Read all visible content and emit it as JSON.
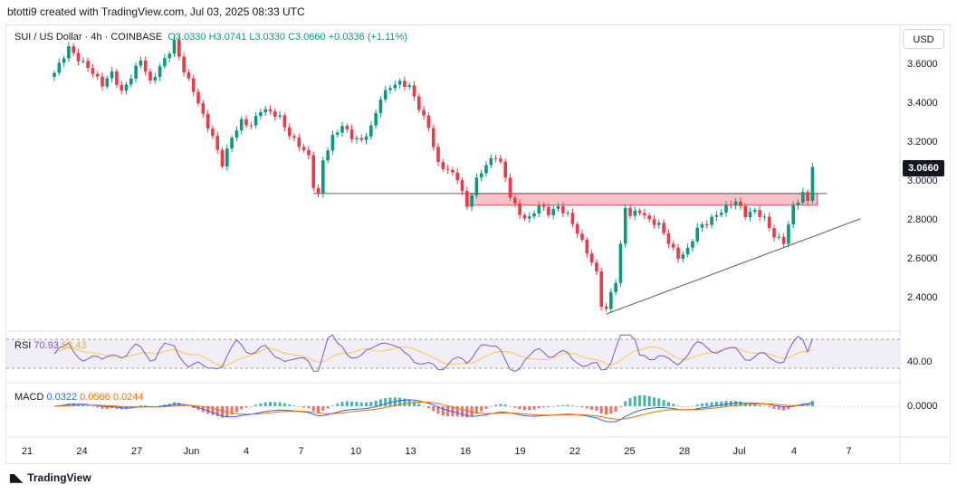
{
  "header": {
    "attribution": "btotti9 created with TradingView.com, Jul 03, 2025 08:33 UTC"
  },
  "symbol": {
    "name": "SUI / US Dollar · 4h · COINBASE",
    "ohlc": "O3.0330  H3.0741  L3.0330  C3.0660  +0.0336 (+1.11%)"
  },
  "currency_button": "USD",
  "last_price": "3.0660",
  "rsi": {
    "label": "RSI",
    "value_rsi": "70.93",
    "value_ma": "53.43",
    "level_label": "40.00"
  },
  "macd": {
    "label": "MACD",
    "value_macd": "0.0322",
    "value_signal": "0.0566",
    "value_hist": "0.0244",
    "zero_label": "0.0000"
  },
  "footer": {
    "brand": "TradingView"
  },
  "colors": {
    "up": "#089981",
    "down": "#f23645",
    "rsi": "#7e57c2",
    "rsi_ma": "#f7c948",
    "macd": "#2962ff",
    "signal": "#ff6d00",
    "resistance_zone": "#f8bbc2"
  },
  "chart_data": {
    "type": "candlestick",
    "title": "SUI / US Dollar · 4h · COINBASE",
    "ylabel": "USD",
    "ylim": [
      2.25,
      3.72
    ],
    "yticks": [
      "3.6000",
      "3.4000",
      "3.2000",
      "3.0000",
      "2.8000",
      "2.6000",
      "2.4000"
    ],
    "xticks": [
      "21",
      "24",
      "27",
      "Jun",
      "4",
      "7",
      "10",
      "13",
      "16",
      "19",
      "22",
      "25",
      "28",
      "Jul",
      "4",
      "7"
    ],
    "close_path": [
      [
        0,
        3.55
      ],
      [
        3,
        3.68
      ],
      [
        5,
        3.62
      ],
      [
        7,
        3.58
      ],
      [
        10,
        3.49
      ],
      [
        12,
        3.55
      ],
      [
        14,
        3.45
      ],
      [
        16,
        3.53
      ],
      [
        18,
        3.62
      ],
      [
        20,
        3.5
      ],
      [
        22,
        3.58
      ],
      [
        24,
        3.66
      ],
      [
        25,
        3.71
      ],
      [
        27,
        3.56
      ],
      [
        29,
        3.46
      ],
      [
        31,
        3.33
      ],
      [
        33,
        3.22
      ],
      [
        35,
        3.08
      ],
      [
        37,
        3.22
      ],
      [
        39,
        3.3
      ],
      [
        41,
        3.28
      ],
      [
        43,
        3.36
      ],
      [
        45,
        3.35
      ],
      [
        47,
        3.32
      ],
      [
        49,
        3.23
      ],
      [
        51,
        3.18
      ],
      [
        53,
        3.12
      ],
      [
        54,
        2.97
      ],
      [
        55,
        2.92
      ],
      [
        56,
        3.1
      ],
      [
        58,
        3.22
      ],
      [
        60,
        3.28
      ],
      [
        62,
        3.22
      ],
      [
        64,
        3.2
      ],
      [
        66,
        3.27
      ],
      [
        68,
        3.42
      ],
      [
        70,
        3.48
      ],
      [
        72,
        3.5
      ],
      [
        74,
        3.48
      ],
      [
        76,
        3.37
      ],
      [
        78,
        3.27
      ],
      [
        80,
        3.08
      ],
      [
        82,
        3.05
      ],
      [
        84,
        3.01
      ],
      [
        86,
        2.86
      ],
      [
        88,
        3.0
      ],
      [
        90,
        3.08
      ],
      [
        92,
        3.12
      ],
      [
        93,
        3.09
      ],
      [
        95,
        2.92
      ],
      [
        97,
        2.82
      ],
      [
        99,
        2.8
      ],
      [
        101,
        2.87
      ],
      [
        103,
        2.83
      ],
      [
        105,
        2.86
      ],
      [
        107,
        2.82
      ],
      [
        109,
        2.73
      ],
      [
        111,
        2.63
      ],
      [
        113,
        2.52
      ],
      [
        114,
        2.36
      ],
      [
        115,
        2.33
      ],
      [
        116,
        2.42
      ],
      [
        117,
        2.48
      ],
      [
        118,
        2.66
      ],
      [
        119,
        2.86
      ],
      [
        120,
        2.82
      ],
      [
        122,
        2.84
      ],
      [
        124,
        2.79
      ],
      [
        126,
        2.77
      ],
      [
        128,
        2.68
      ],
      [
        130,
        2.6
      ],
      [
        132,
        2.64
      ],
      [
        134,
        2.75
      ],
      [
        136,
        2.78
      ],
      [
        138,
        2.82
      ],
      [
        140,
        2.86
      ],
      [
        142,
        2.89
      ],
      [
        144,
        2.82
      ],
      [
        146,
        2.84
      ],
      [
        148,
        2.8
      ],
      [
        150,
        2.71
      ],
      [
        152,
        2.68
      ],
      [
        154,
        2.86
      ],
      [
        156,
        2.93
      ],
      [
        157,
        2.89
      ],
      [
        158,
        3.066
      ]
    ],
    "annotations": [
      {
        "type": "horizontal-level",
        "price": 2.93,
        "from_index": 54,
        "to_index": 161
      },
      {
        "type": "resistance-zone",
        "price_top": 2.93,
        "price_bottom": 2.87,
        "from_index": 86,
        "to_index": 159
      },
      {
        "type": "ascending-trendline",
        "from": [
          115,
          2.31
        ],
        "to": [
          168,
          2.8
        ]
      }
    ],
    "rsi": {
      "last": 70.93,
      "ma_last": 53.43,
      "level": 40.0,
      "band": [
        30,
        70
      ]
    },
    "macd": {
      "macd": 0.0322,
      "signal": 0.0566,
      "hist": 0.0244
    }
  }
}
